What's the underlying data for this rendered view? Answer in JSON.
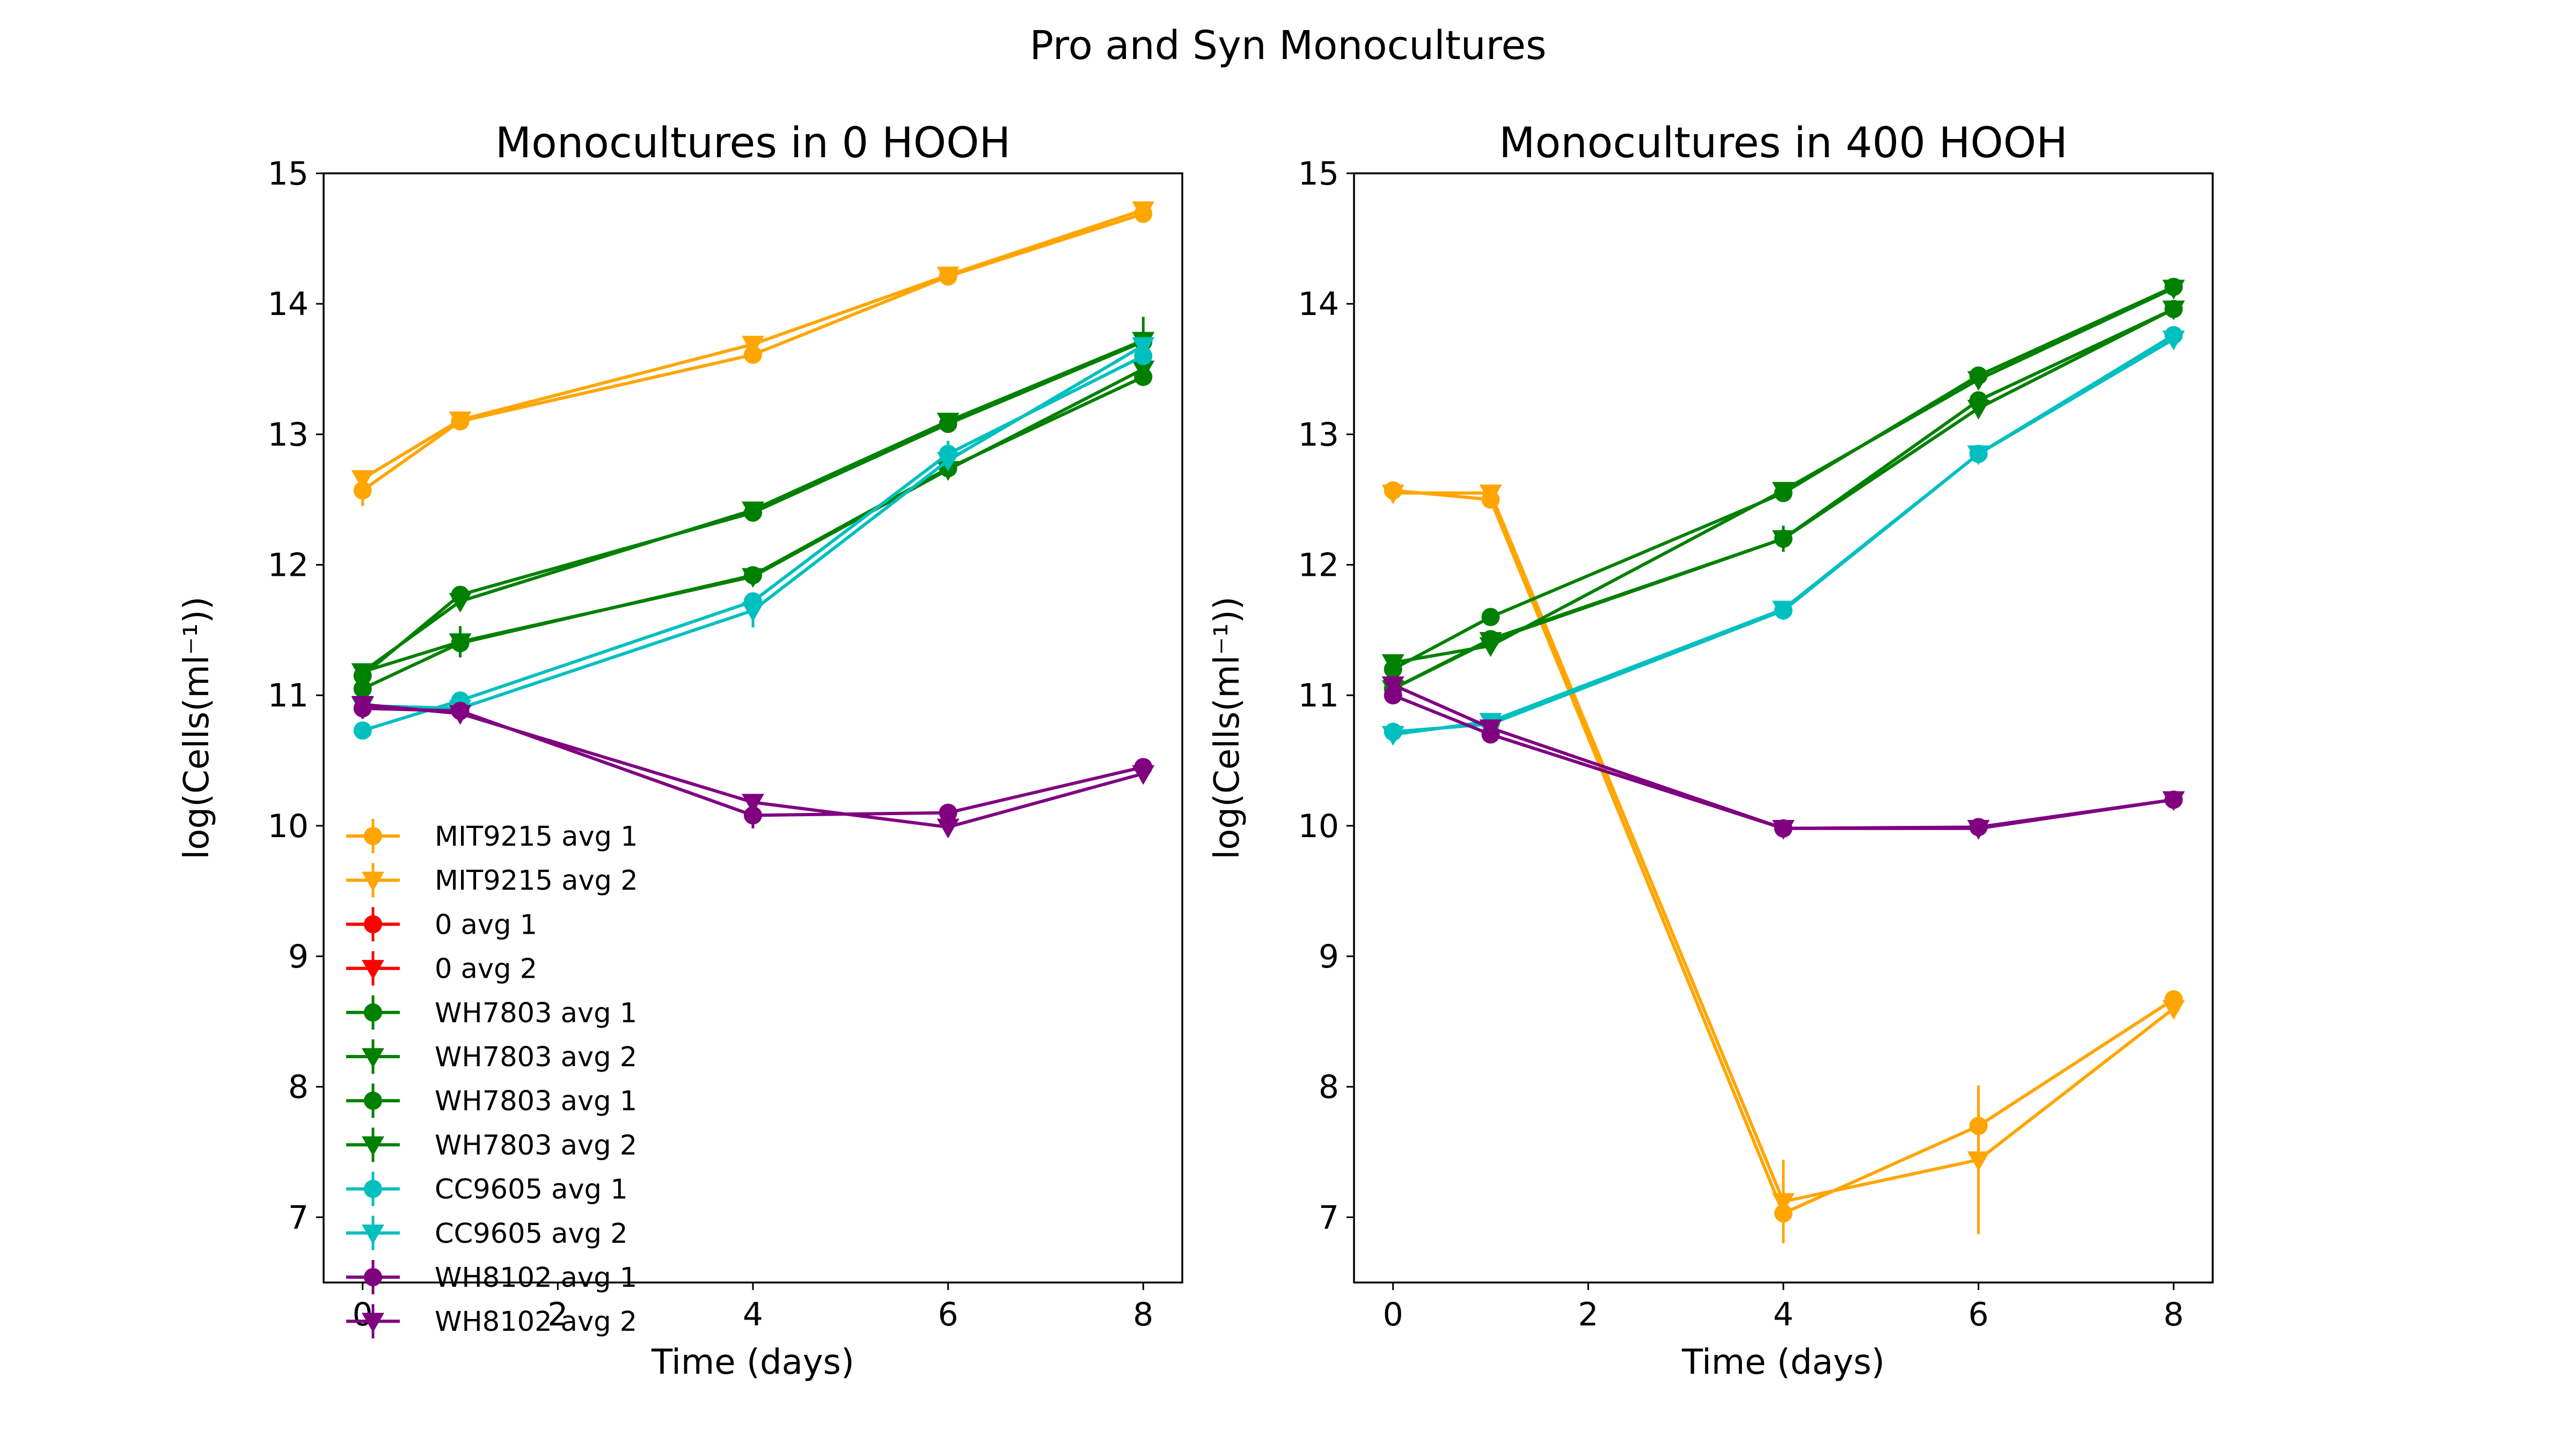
{
  "figure": {
    "suptitle": "Pro and Syn Monocultures"
  },
  "chart_data": [
    {
      "type": "line",
      "title": "Monocultures in 0 HOOH",
      "xlabel": "Time (days)",
      "ylabel": "log(Cells(ml⁻¹))",
      "xlim": [
        -0.4,
        8.4
      ],
      "ylim": [
        6.5,
        15
      ],
      "xticks": [
        0,
        2,
        4,
        6,
        8
      ],
      "yticks": [
        7,
        8,
        9,
        10,
        11,
        12,
        13,
        14,
        15
      ],
      "legend": "lower-left",
      "grid": false,
      "series": [
        {
          "name": "MIT9215 avg 1",
          "color": "#FFA500",
          "marker": "circle",
          "x": [
            0,
            1,
            4,
            6,
            8
          ],
          "y": [
            12.57,
            13.1,
            13.61,
            14.21,
            14.69
          ],
          "err": [
            0.12,
            0.03,
            0.04,
            0.03,
            0.03
          ]
        },
        {
          "name": "MIT9215 avg 2",
          "color": "#FFA500",
          "marker": "triangle-down",
          "x": [
            0,
            1,
            4,
            6,
            8
          ],
          "y": [
            12.66,
            13.11,
            13.69,
            14.22,
            14.72
          ],
          "err": [
            0.05,
            0.03,
            0.03,
            0.03,
            0.03
          ]
        },
        {
          "name": "0 avg 1",
          "color": "#FF0000",
          "marker": "circle",
          "x": [],
          "y": [],
          "err": []
        },
        {
          "name": "0 avg 2",
          "color": "#FF0000",
          "marker": "triangle-down",
          "x": [],
          "y": [],
          "err": []
        },
        {
          "name": "WH7803 avg 1",
          "color": "#008000",
          "marker": "circle",
          "x": [
            0,
            1,
            4,
            6,
            8
          ],
          "y": [
            11.15,
            11.77,
            12.4,
            13.08,
            13.71
          ],
          "err": [
            0.03,
            0.03,
            0.03,
            0.03,
            0.05
          ]
        },
        {
          "name": "WH7803 avg 2",
          "color": "#008000",
          "marker": "triangle-down",
          "x": [
            0,
            1,
            4,
            6,
            8
          ],
          "y": [
            11.18,
            11.72,
            12.42,
            13.1,
            13.72
          ],
          "err": [
            0.03,
            0.03,
            0.03,
            0.03,
            0.18
          ]
        },
        {
          "name": "WH7803 avg 1",
          "color": "#008000",
          "marker": "circle",
          "x": [
            0,
            1,
            4,
            6,
            8
          ],
          "y": [
            11.05,
            11.4,
            11.92,
            12.74,
            13.44
          ],
          "err": [
            0.03,
            0.05,
            0.04,
            0.03,
            0.03
          ]
        },
        {
          "name": "WH7803 avg 2",
          "color": "#008000",
          "marker": "triangle-down",
          "x": [
            0,
            1,
            4,
            6,
            8
          ],
          "y": [
            11.18,
            11.41,
            11.91,
            12.73,
            13.5
          ],
          "err": [
            0.03,
            0.12,
            0.04,
            0.03,
            0.03
          ]
        },
        {
          "name": "CC9605 avg 1",
          "color": "#00BFBF",
          "marker": "circle",
          "x": [
            0,
            1,
            4,
            6,
            8
          ],
          "y": [
            10.73,
            10.96,
            11.72,
            12.85,
            13.6
          ],
          "err": [
            0.03,
            0.05,
            0.05,
            0.1,
            0.04
          ]
        },
        {
          "name": "CC9605 avg 2",
          "color": "#00BFBF",
          "marker": "triangle-down",
          "x": [
            0,
            1,
            4,
            6,
            8
          ],
          "y": [
            10.92,
            10.9,
            11.65,
            12.8,
            13.68
          ],
          "err": [
            0.03,
            0.1,
            0.13,
            0.06,
            0.04
          ]
        },
        {
          "name": "WH8102 avg 1",
          "color": "#800080",
          "marker": "circle",
          "x": [
            0,
            1,
            4,
            6,
            8
          ],
          "y": [
            10.9,
            10.88,
            10.08,
            10.1,
            10.45
          ],
          "err": [
            0.08,
            0.03,
            0.1,
            0.03,
            0.03
          ]
        },
        {
          "name": "WH8102 avg 2",
          "color": "#800080",
          "marker": "triangle-down",
          "x": [
            0,
            1,
            4,
            6,
            8
          ],
          "y": [
            10.93,
            10.86,
            10.18,
            9.99,
            10.4
          ],
          "err": [
            0.03,
            0.07,
            0.03,
            0.03,
            0.03
          ]
        }
      ]
    },
    {
      "type": "line",
      "title": "Monocultures in 400 HOOH",
      "xlabel": "Time (days)",
      "ylabel": "log(Cells(ml⁻¹))",
      "xlim": [
        -0.4,
        8.4
      ],
      "ylim": [
        6.5,
        15
      ],
      "xticks": [
        0,
        2,
        4,
        6,
        8
      ],
      "yticks": [
        7,
        8,
        9,
        10,
        11,
        12,
        13,
        14,
        15
      ],
      "legend": "none",
      "grid": false,
      "series": [
        {
          "name": "MIT9215 avg 1",
          "color": "#FFA500",
          "marker": "circle",
          "x": [
            0,
            1,
            4,
            6,
            8
          ],
          "y": [
            12.57,
            12.5,
            7.03,
            7.7,
            8.67
          ],
          "err": [
            0.03,
            0.03,
            0.23,
            0.3,
            0.03
          ]
        },
        {
          "name": "MIT9215 avg 2",
          "color": "#FFA500",
          "marker": "triangle-down",
          "x": [
            0,
            1,
            4,
            6,
            8
          ],
          "y": [
            12.55,
            12.55,
            7.12,
            7.44,
            8.6
          ],
          "err": [
            0.03,
            0.03,
            0.32,
            0.57,
            0.05
          ]
        },
        {
          "name": "WH7803 avg 1",
          "color": "#008000",
          "marker": "circle",
          "x": [
            0,
            1,
            4,
            6,
            8
          ],
          "y": [
            11.2,
            11.6,
            12.55,
            13.45,
            14.13
          ],
          "err": [
            0.03,
            0.03,
            0.03,
            0.03,
            0.03
          ]
        },
        {
          "name": "WH7803 avg 2",
          "color": "#008000",
          "marker": "triangle-down",
          "x": [
            0,
            1,
            4,
            6,
            8
          ],
          "y": [
            11.25,
            11.38,
            12.57,
            13.42,
            14.12
          ],
          "err": [
            0.06,
            0.03,
            0.03,
            0.03,
            0.03
          ]
        },
        {
          "name": "WH7803 avg 1",
          "color": "#008000",
          "marker": "circle",
          "x": [
            0,
            1,
            4,
            6,
            8
          ],
          "y": [
            11.05,
            11.43,
            12.2,
            13.26,
            13.96
          ],
          "err": [
            0.03,
            0.03,
            0.1,
            0.04,
            0.03
          ]
        },
        {
          "name": "WH7803 avg 2",
          "color": "#008000",
          "marker": "triangle-down",
          "x": [
            0,
            1,
            4,
            6,
            8
          ],
          "y": [
            11.05,
            11.42,
            12.2,
            13.2,
            13.96
          ],
          "err": [
            0.03,
            0.03,
            0.08,
            0.04,
            0.03
          ]
        },
        {
          "name": "CC9605 avg 1",
          "color": "#00BFBF",
          "marker": "circle",
          "x": [
            0,
            1,
            4,
            6,
            8
          ],
          "y": [
            10.72,
            10.78,
            11.65,
            12.85,
            13.76
          ],
          "err": [
            0.06,
            0.03,
            0.04,
            0.04,
            0.03
          ]
        },
        {
          "name": "CC9605 avg 2",
          "color": "#00BFBF",
          "marker": "triangle-down",
          "x": [
            0,
            1,
            4,
            6,
            8
          ],
          "y": [
            10.7,
            10.8,
            11.66,
            12.85,
            13.73
          ],
          "err": [
            0.06,
            0.03,
            0.04,
            0.04,
            0.03
          ]
        },
        {
          "name": "WH8102 avg 1",
          "color": "#800080",
          "marker": "circle",
          "x": [
            0,
            1,
            4,
            6,
            8
          ],
          "y": [
            11.0,
            10.7,
            9.98,
            9.99,
            10.2
          ],
          "err": [
            0.03,
            0.03,
            0.04,
            0.03,
            0.03
          ]
        },
        {
          "name": "WH8102 avg 2",
          "color": "#800080",
          "marker": "triangle-down",
          "x": [
            0,
            1,
            4,
            6,
            8
          ],
          "y": [
            11.08,
            10.75,
            9.98,
            9.98,
            10.2
          ],
          "err": [
            0.03,
            0.03,
            0.04,
            0.03,
            0.03
          ]
        }
      ]
    }
  ]
}
